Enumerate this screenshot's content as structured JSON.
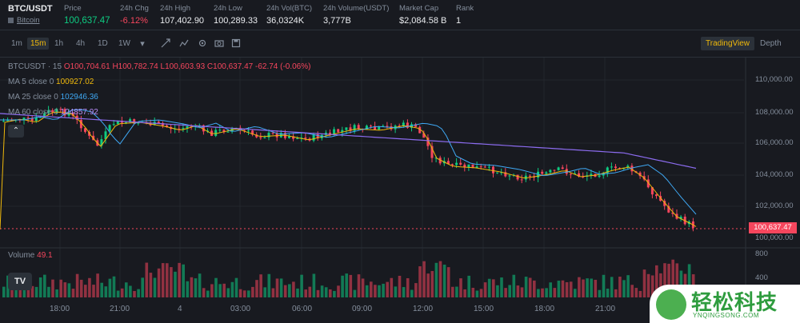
{
  "ticker": {
    "symbol": "BTC/USDT",
    "subtitle": "Bitcoin",
    "stats": [
      {
        "label": "Price",
        "value": "100,637.47",
        "tone": "green"
      },
      {
        "label": "24h Chg",
        "value": "-6.12%",
        "tone": "red"
      },
      {
        "label": "24h High",
        "value": "107,402.90",
        "tone": "neutral"
      },
      {
        "label": "24h Low",
        "value": "100,289.33",
        "tone": "neutral"
      },
      {
        "label": "24h Vol(BTC)",
        "value": "36,0324K",
        "tone": "neutral"
      },
      {
        "label": "24h Volume(USDT)",
        "value": "3,777B",
        "tone": "neutral"
      },
      {
        "label": "Market Cap",
        "value": "$2,084.58 B",
        "tone": "neutral"
      },
      {
        "label": "Rank",
        "value": "1",
        "tone": "neutral"
      }
    ]
  },
  "toolbar": {
    "intervals": [
      "1m",
      "15m",
      "1h",
      "4h",
      "1D",
      "1W"
    ],
    "active_interval": "15m",
    "icons": [
      "dropdown-caret-icon",
      "draw-line-icon",
      "indicators-icon",
      "settings-icon",
      "screenshot-icon",
      "save-icon"
    ],
    "views": [
      "TradingView",
      "Depth"
    ],
    "active_view": "TradingView"
  },
  "chart": {
    "legend_title": "BTCUSDT · 15",
    "ohlc": {
      "o": "O100,704.61",
      "h": "H100,782.74",
      "l": "L100,603.93",
      "c": "C100,637.47",
      "chg": "-62.74 (-0.06%)"
    },
    "ma": [
      {
        "label": "MA 5 close 0",
        "value": "100927.02",
        "color": "#f0b90b"
      },
      {
        "label": "MA 25 close 0",
        "value": "102946.36",
        "color": "#3fa9f5"
      },
      {
        "label": "MA 60 close 0",
        "value": "104857.92",
        "color": "#b98cf6"
      }
    ],
    "price_axis": [
      "110,000.00",
      "108,000.00",
      "106,000.00",
      "104,000.00",
      "102,000.00",
      "100,000.00"
    ],
    "current_price": "100,637.47",
    "volume_label": "Volume",
    "volume_value": "49.1",
    "volume_axis": [
      "800",
      "400"
    ],
    "time_axis": [
      "18:00",
      "21:00",
      "4",
      "03:00",
      "06:00",
      "09:00",
      "12:00",
      "15:00",
      "18:00",
      "21:00"
    ],
    "colors": {
      "up": "#0ecb81",
      "down": "#f6465d",
      "bg": "#181a20"
    }
  },
  "watermark": {
    "title": "轻松科技",
    "sub": "YNQINGSONG.COM"
  }
}
